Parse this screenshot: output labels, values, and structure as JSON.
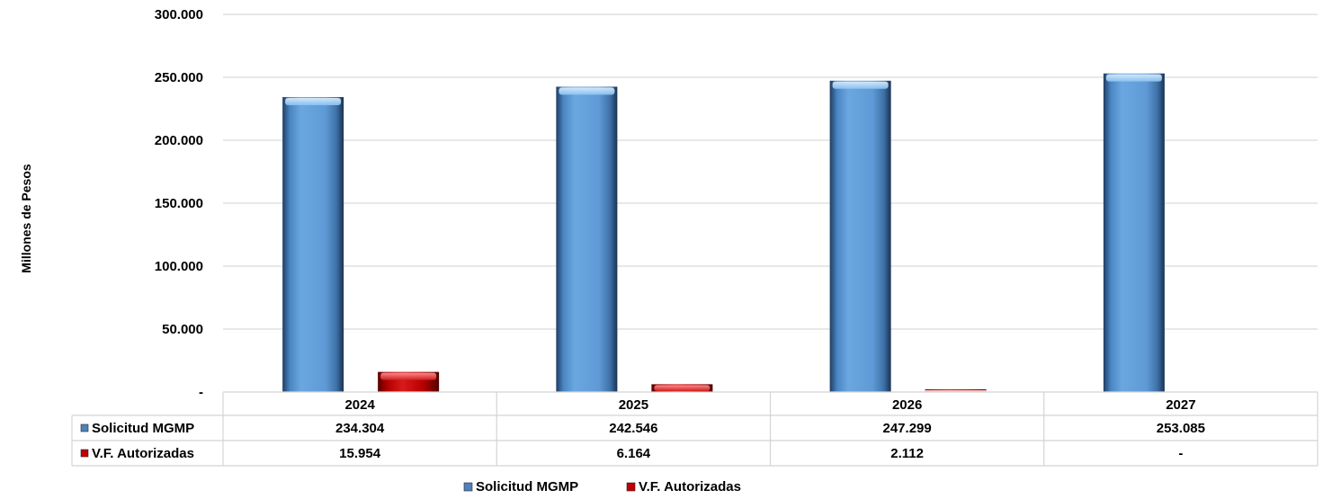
{
  "chart_data": {
    "type": "bar",
    "categories": [
      "2024",
      "2025",
      "2026",
      "2027"
    ],
    "series": [
      {
        "name": "Solicitud MGMP",
        "values": [
          234304,
          242546,
          247299,
          253085
        ],
        "labels": [
          "234.304",
          "242.546",
          "247.299",
          "253.085"
        ],
        "color": "#5b9bd5"
      },
      {
        "name": "V.F. Autorizadas",
        "values": [
          15954,
          6164,
          2112,
          0
        ],
        "labels": [
          "15.954",
          "6.164",
          "2.112",
          "-"
        ],
        "color": "#c00000"
      }
    ],
    "ylabel": "Millones de Pesos",
    "ylim": [
      0,
      300000
    ],
    "yticks": [
      0,
      50000,
      100000,
      150000,
      200000,
      250000,
      300000
    ],
    "ytick_labels": [
      "-",
      "50.000",
      "100.000",
      "150.000",
      "200.000",
      "250.000",
      "300.000"
    ],
    "grid": true,
    "legend_position": "bottom",
    "data_table": true
  }
}
